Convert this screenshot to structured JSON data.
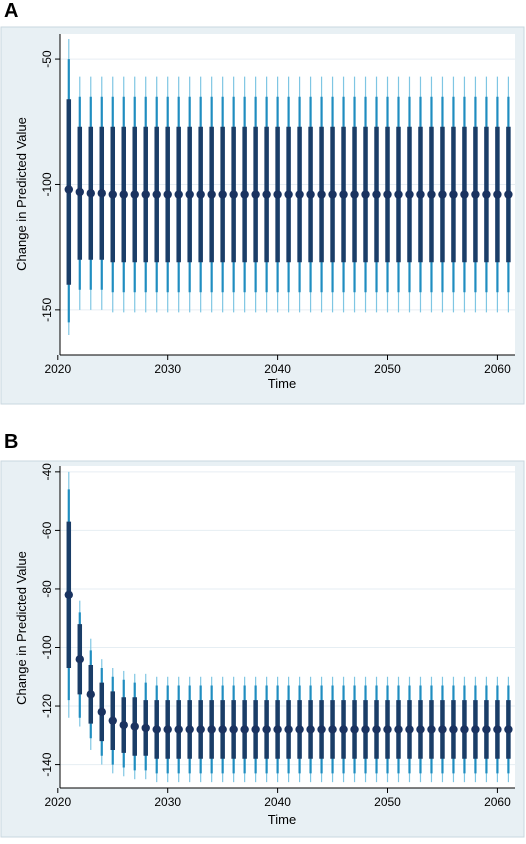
{
  "panels": [
    {
      "label": "A"
    },
    {
      "label": "B"
    }
  ],
  "colors": {
    "background": "#e8f0f4",
    "plot_area": "#ffffff",
    "grid": "#e6eef3",
    "ci_outer": "#7fc6e3",
    "ci_mid": "#1f8dc0",
    "ci_inner": "#1a3d67",
    "point": "#1a3360"
  },
  "chart_data": [
    {
      "type": "scatter",
      "panel": "A",
      "title": "",
      "xlabel": "Time",
      "ylabel": "Change in Predicted Value",
      "xlim": [
        2020.2,
        2061.6
      ],
      "ylim": [
        -168,
        -40
      ],
      "xticks": [
        2020,
        2030,
        2040,
        2050,
        2060
      ],
      "yticks": [
        -50,
        -100,
        -150
      ],
      "grid": true,
      "x_start": 2021,
      "x_end": 2061,
      "points": [
        {
          "x": 2021,
          "y": -102,
          "ci99": [
            -160,
            -42
          ],
          "ci95": [
            -155,
            -50
          ],
          "ci_inner": [
            -140,
            -66
          ]
        },
        {
          "x": 2022,
          "y": -103,
          "ci99": [
            -150,
            -57
          ],
          "ci95": [
            -142,
            -65
          ],
          "ci_inner": [
            -130,
            -77
          ]
        },
        {
          "x": 2023,
          "y": -103.5,
          "ci99": [
            -150,
            -57
          ],
          "ci95": [
            -142,
            -65
          ],
          "ci_inner": [
            -130,
            -77
          ]
        },
        {
          "x": 2024,
          "y": -103.5,
          "ci99": [
            -150,
            -57
          ],
          "ci95": [
            -142,
            -65
          ],
          "ci_inner": [
            -130,
            -77
          ]
        }
      ],
      "steady_state": {
        "y": -104,
        "ci99": [
          -151,
          -57
        ],
        "ci95": [
          -143,
          -65
        ],
        "ci_inner": [
          -131,
          -77
        ]
      }
    },
    {
      "type": "scatter",
      "panel": "B",
      "title": "",
      "xlabel": "Time",
      "ylabel": "Change in Predicted Value",
      "xlim": [
        2020.2,
        2061.6
      ],
      "ylim": [
        -148,
        -38
      ],
      "xticks": [
        2020,
        2030,
        2040,
        2050,
        2060
      ],
      "yticks": [
        -40,
        -60,
        -80,
        -100,
        -120,
        -140
      ],
      "grid": true,
      "x_start": 2021,
      "x_end": 2061,
      "points": [
        {
          "x": 2021,
          "y": -82,
          "ci99": [
            -124,
            -40
          ],
          "ci95": [
            -118,
            -46
          ],
          "ci_inner": [
            -107,
            -57
          ]
        },
        {
          "x": 2022,
          "y": -104,
          "ci99": [
            -127,
            -84
          ],
          "ci95": [
            -124,
            -88
          ],
          "ci_inner": [
            -116,
            -92
          ]
        },
        {
          "x": 2023,
          "y": -116,
          "ci99": [
            -135,
            -97
          ],
          "ci95": [
            -131,
            -101
          ],
          "ci_inner": [
            -126,
            -106
          ]
        },
        {
          "x": 2024,
          "y": -122,
          "ci99": [
            -140,
            -104
          ],
          "ci95": [
            -137,
            -107
          ],
          "ci_inner": [
            -132,
            -112
          ]
        },
        {
          "x": 2025,
          "y": -125,
          "ci99": [
            -143,
            -107
          ],
          "ci95": [
            -140,
            -110
          ],
          "ci_inner": [
            -135,
            -115
          ]
        },
        {
          "x": 2026,
          "y": -126.5,
          "ci99": [
            -144,
            -108
          ],
          "ci95": [
            -141,
            -111
          ],
          "ci_inner": [
            -136,
            -117
          ]
        },
        {
          "x": 2027,
          "y": -127,
          "ci99": [
            -145,
            -109
          ],
          "ci95": [
            -142,
            -112
          ],
          "ci_inner": [
            -137,
            -117
          ]
        },
        {
          "x": 2028,
          "y": -127.5,
          "ci99": [
            -145,
            -109
          ],
          "ci95": [
            -142,
            -112
          ],
          "ci_inner": [
            -137,
            -118
          ]
        }
      ],
      "steady_state": {
        "y": -128,
        "ci99": [
          -146,
          -110
        ],
        "ci95": [
          -143,
          -113
        ],
        "ci_inner": [
          -138,
          -118
        ]
      }
    }
  ]
}
